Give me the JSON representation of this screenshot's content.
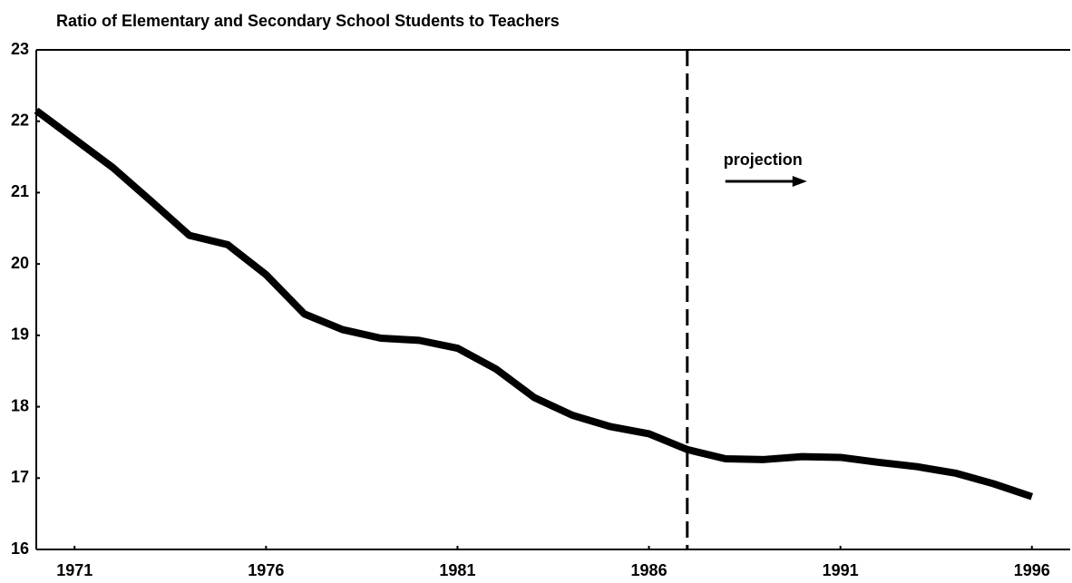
{
  "chart_data": {
    "type": "line",
    "title": "Ratio of Elementary and Secondary School Students to Teachers",
    "x": [
      1970,
      1971,
      1972,
      1973,
      1974,
      1975,
      1976,
      1977,
      1978,
      1979,
      1980,
      1981,
      1982,
      1983,
      1984,
      1985,
      1986,
      1987,
      1988,
      1989,
      1990,
      1991,
      1992,
      1993,
      1994,
      1995,
      1996
    ],
    "values": [
      22.15,
      21.75,
      21.35,
      20.88,
      20.4,
      20.27,
      19.85,
      19.3,
      19.08,
      18.96,
      18.93,
      18.82,
      18.53,
      18.13,
      17.88,
      17.72,
      17.62,
      17.4,
      17.27,
      17.26,
      17.3,
      17.29,
      17.22,
      17.16,
      17.07,
      16.92,
      16.74
    ],
    "color": "#000000",
    "xlim": [
      1970,
      1997
    ],
    "xticks": [
      1971,
      1976,
      1981,
      1986,
      1991,
      1996
    ],
    "ylim": [
      16,
      23
    ],
    "yticks": [
      16,
      17,
      18,
      19,
      20,
      21,
      22,
      23
    ],
    "annotation": {
      "text": "projection",
      "x": 1987
    }
  }
}
